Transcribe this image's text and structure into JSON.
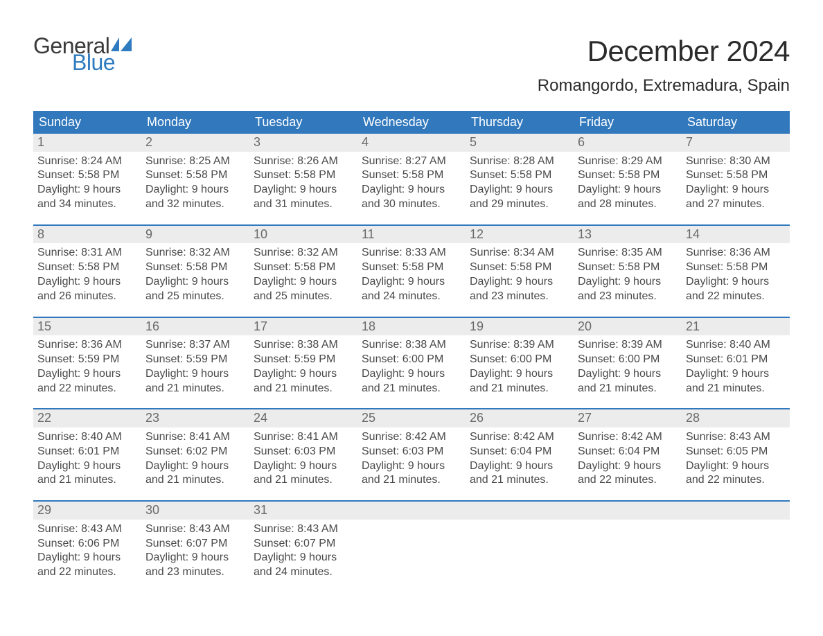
{
  "brand": {
    "word1": "General",
    "word2": "Blue",
    "color_dark": "#3a3a3a",
    "color_blue": "#2f7bbf",
    "flag_color": "#2f7bbf"
  },
  "title": {
    "month": "December 2024",
    "location": "Romangordo, Extremadura, Spain"
  },
  "styling": {
    "header_bg": "#3178bd",
    "header_text": "#ffffff",
    "daynum_bg": "#ececec",
    "daynum_text": "#6a6a6a",
    "body_text": "#4a4a4a",
    "row_border": "#3178bd",
    "page_bg": "#ffffff",
    "month_fontsize": 42,
    "location_fontsize": 24,
    "weekday_fontsize": 18,
    "daynum_fontsize": 18,
    "content_fontsize": 16
  },
  "weekdays": [
    "Sunday",
    "Monday",
    "Tuesday",
    "Wednesday",
    "Thursday",
    "Friday",
    "Saturday"
  ],
  "weeks": [
    [
      {
        "n": "1",
        "sunrise": "Sunrise: 8:24 AM",
        "sunset": "Sunset: 5:58 PM",
        "d1": "Daylight: 9 hours",
        "d2": "and 34 minutes."
      },
      {
        "n": "2",
        "sunrise": "Sunrise: 8:25 AM",
        "sunset": "Sunset: 5:58 PM",
        "d1": "Daylight: 9 hours",
        "d2": "and 32 minutes."
      },
      {
        "n": "3",
        "sunrise": "Sunrise: 8:26 AM",
        "sunset": "Sunset: 5:58 PM",
        "d1": "Daylight: 9 hours",
        "d2": "and 31 minutes."
      },
      {
        "n": "4",
        "sunrise": "Sunrise: 8:27 AM",
        "sunset": "Sunset: 5:58 PM",
        "d1": "Daylight: 9 hours",
        "d2": "and 30 minutes."
      },
      {
        "n": "5",
        "sunrise": "Sunrise: 8:28 AM",
        "sunset": "Sunset: 5:58 PM",
        "d1": "Daylight: 9 hours",
        "d2": "and 29 minutes."
      },
      {
        "n": "6",
        "sunrise": "Sunrise: 8:29 AM",
        "sunset": "Sunset: 5:58 PM",
        "d1": "Daylight: 9 hours",
        "d2": "and 28 minutes."
      },
      {
        "n": "7",
        "sunrise": "Sunrise: 8:30 AM",
        "sunset": "Sunset: 5:58 PM",
        "d1": "Daylight: 9 hours",
        "d2": "and 27 minutes."
      }
    ],
    [
      {
        "n": "8",
        "sunrise": "Sunrise: 8:31 AM",
        "sunset": "Sunset: 5:58 PM",
        "d1": "Daylight: 9 hours",
        "d2": "and 26 minutes."
      },
      {
        "n": "9",
        "sunrise": "Sunrise: 8:32 AM",
        "sunset": "Sunset: 5:58 PM",
        "d1": "Daylight: 9 hours",
        "d2": "and 25 minutes."
      },
      {
        "n": "10",
        "sunrise": "Sunrise: 8:32 AM",
        "sunset": "Sunset: 5:58 PM",
        "d1": "Daylight: 9 hours",
        "d2": "and 25 minutes."
      },
      {
        "n": "11",
        "sunrise": "Sunrise: 8:33 AM",
        "sunset": "Sunset: 5:58 PM",
        "d1": "Daylight: 9 hours",
        "d2": "and 24 minutes."
      },
      {
        "n": "12",
        "sunrise": "Sunrise: 8:34 AM",
        "sunset": "Sunset: 5:58 PM",
        "d1": "Daylight: 9 hours",
        "d2": "and 23 minutes."
      },
      {
        "n": "13",
        "sunrise": "Sunrise: 8:35 AM",
        "sunset": "Sunset: 5:58 PM",
        "d1": "Daylight: 9 hours",
        "d2": "and 23 minutes."
      },
      {
        "n": "14",
        "sunrise": "Sunrise: 8:36 AM",
        "sunset": "Sunset: 5:58 PM",
        "d1": "Daylight: 9 hours",
        "d2": "and 22 minutes."
      }
    ],
    [
      {
        "n": "15",
        "sunrise": "Sunrise: 8:36 AM",
        "sunset": "Sunset: 5:59 PM",
        "d1": "Daylight: 9 hours",
        "d2": "and 22 minutes."
      },
      {
        "n": "16",
        "sunrise": "Sunrise: 8:37 AM",
        "sunset": "Sunset: 5:59 PM",
        "d1": "Daylight: 9 hours",
        "d2": "and 21 minutes."
      },
      {
        "n": "17",
        "sunrise": "Sunrise: 8:38 AM",
        "sunset": "Sunset: 5:59 PM",
        "d1": "Daylight: 9 hours",
        "d2": "and 21 minutes."
      },
      {
        "n": "18",
        "sunrise": "Sunrise: 8:38 AM",
        "sunset": "Sunset: 6:00 PM",
        "d1": "Daylight: 9 hours",
        "d2": "and 21 minutes."
      },
      {
        "n": "19",
        "sunrise": "Sunrise: 8:39 AM",
        "sunset": "Sunset: 6:00 PM",
        "d1": "Daylight: 9 hours",
        "d2": "and 21 minutes."
      },
      {
        "n": "20",
        "sunrise": "Sunrise: 8:39 AM",
        "sunset": "Sunset: 6:00 PM",
        "d1": "Daylight: 9 hours",
        "d2": "and 21 minutes."
      },
      {
        "n": "21",
        "sunrise": "Sunrise: 8:40 AM",
        "sunset": "Sunset: 6:01 PM",
        "d1": "Daylight: 9 hours",
        "d2": "and 21 minutes."
      }
    ],
    [
      {
        "n": "22",
        "sunrise": "Sunrise: 8:40 AM",
        "sunset": "Sunset: 6:01 PM",
        "d1": "Daylight: 9 hours",
        "d2": "and 21 minutes."
      },
      {
        "n": "23",
        "sunrise": "Sunrise: 8:41 AM",
        "sunset": "Sunset: 6:02 PM",
        "d1": "Daylight: 9 hours",
        "d2": "and 21 minutes."
      },
      {
        "n": "24",
        "sunrise": "Sunrise: 8:41 AM",
        "sunset": "Sunset: 6:03 PM",
        "d1": "Daylight: 9 hours",
        "d2": "and 21 minutes."
      },
      {
        "n": "25",
        "sunrise": "Sunrise: 8:42 AM",
        "sunset": "Sunset: 6:03 PM",
        "d1": "Daylight: 9 hours",
        "d2": "and 21 minutes."
      },
      {
        "n": "26",
        "sunrise": "Sunrise: 8:42 AM",
        "sunset": "Sunset: 6:04 PM",
        "d1": "Daylight: 9 hours",
        "d2": "and 21 minutes."
      },
      {
        "n": "27",
        "sunrise": "Sunrise: 8:42 AM",
        "sunset": "Sunset: 6:04 PM",
        "d1": "Daylight: 9 hours",
        "d2": "and 22 minutes."
      },
      {
        "n": "28",
        "sunrise": "Sunrise: 8:43 AM",
        "sunset": "Sunset: 6:05 PM",
        "d1": "Daylight: 9 hours",
        "d2": "and 22 minutes."
      }
    ],
    [
      {
        "n": "29",
        "sunrise": "Sunrise: 8:43 AM",
        "sunset": "Sunset: 6:06 PM",
        "d1": "Daylight: 9 hours",
        "d2": "and 22 minutes."
      },
      {
        "n": "30",
        "sunrise": "Sunrise: 8:43 AM",
        "sunset": "Sunset: 6:07 PM",
        "d1": "Daylight: 9 hours",
        "d2": "and 23 minutes."
      },
      {
        "n": "31",
        "sunrise": "Sunrise: 8:43 AM",
        "sunset": "Sunset: 6:07 PM",
        "d1": "Daylight: 9 hours",
        "d2": "and 24 minutes."
      },
      {
        "n": "",
        "sunrise": "",
        "sunset": "",
        "d1": "",
        "d2": ""
      },
      {
        "n": "",
        "sunrise": "",
        "sunset": "",
        "d1": "",
        "d2": ""
      },
      {
        "n": "",
        "sunrise": "",
        "sunset": "",
        "d1": "",
        "d2": ""
      },
      {
        "n": "",
        "sunrise": "",
        "sunset": "",
        "d1": "",
        "d2": ""
      }
    ]
  ]
}
